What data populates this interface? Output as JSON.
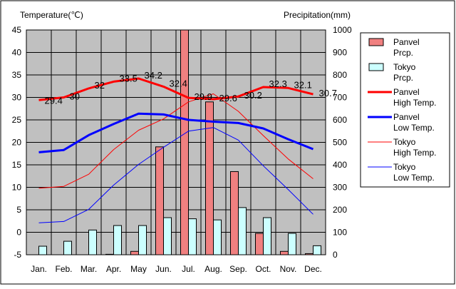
{
  "chart_data": {
    "type": "bar+line",
    "left_axis_label": "Temperature(℃)",
    "right_axis_label": "Precipitation(mm)",
    "categories": [
      "Jan.",
      "Feb.",
      "Mar.",
      "Apr.",
      "May",
      "Jun.",
      "Jul.",
      "Aug.",
      "Sep.",
      "Oct.",
      "Nov.",
      "Dec."
    ],
    "left_ylim": [
      -5,
      45
    ],
    "left_ticks": [
      -5,
      0,
      5,
      10,
      15,
      20,
      25,
      30,
      35,
      40,
      45
    ],
    "right_ylim": [
      0,
      1000
    ],
    "right_ticks": [
      0,
      100,
      200,
      300,
      400,
      500,
      600,
      700,
      800,
      900,
      1000
    ],
    "bar_series": [
      {
        "name": "Panvel Prcp.",
        "legend": [
          "Panvel",
          "Prcp."
        ],
        "color": "#f08080",
        "values": [
          0,
          0,
          0,
          2,
          15,
          480,
          1000,
          680,
          370,
          95,
          15,
          5
        ]
      },
      {
        "name": "Tokyo Prcp.",
        "legend": [
          "Tokyo",
          "Prcp."
        ],
        "color": "#ccffff",
        "values": [
          38,
          60,
          110,
          130,
          130,
          165,
          160,
          155,
          210,
          165,
          95,
          40
        ]
      }
    ],
    "line_series": [
      {
        "name": "Panvel High Temp.",
        "legend": [
          "Panvel",
          "High Temp."
        ],
        "color": "#ff0000",
        "width": 3,
        "values": [
          29.4,
          30,
          32,
          33.5,
          34.2,
          32.4,
          29.9,
          29.6,
          30.2,
          32.3,
          32.1,
          30.7
        ],
        "labels": [
          "29.4",
          "30",
          "32",
          "33.5",
          "34.2",
          "32.4",
          "29.9",
          "29.6",
          "30.2",
          "32.3",
          "32.1",
          "30.7"
        ]
      },
      {
        "name": "Panvel Low Temp.",
        "legend": [
          "Panvel",
          "Low Temp."
        ],
        "color": "#0000ff",
        "width": 3,
        "values": [
          17.8,
          18.3,
          21.6,
          24.1,
          26.4,
          26.2,
          25,
          24.6,
          24.3,
          23.1,
          20.7,
          18.5
        ]
      },
      {
        "name": "Tokyo High Temp.",
        "legend": [
          "Tokyo",
          "High Temp."
        ],
        "color": "#ff0000",
        "width": 1,
        "values": [
          9.8,
          10.2,
          12.9,
          18.4,
          22.7,
          25.2,
          29,
          30.8,
          26.9,
          21.5,
          16.3,
          11.9
        ]
      },
      {
        "name": "Tokyo Low Temp.",
        "legend": [
          "Tokyo",
          "Low Temp."
        ],
        "color": "#0000ff",
        "width": 1,
        "values": [
          2.1,
          2.4,
          5.1,
          10.5,
          15.1,
          18.9,
          22.5,
          23.3,
          20.5,
          14.8,
          9.5,
          4.0
        ]
      }
    ]
  }
}
